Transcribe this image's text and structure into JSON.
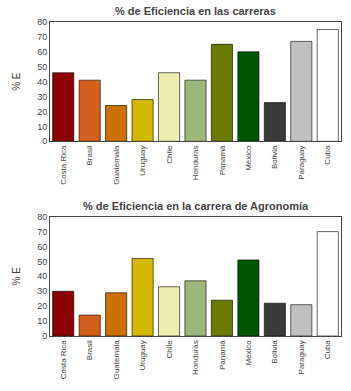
{
  "chart_data": [
    {
      "type": "bar",
      "title": "% de Eficiencia en las carreras",
      "ylabel": "% E",
      "categories": [
        "Costa Rica",
        "Brasil",
        "Guatemala",
        "Uruguay",
        "Chile",
        "Honduras",
        "Panamá",
        "México",
        "Bolivia",
        "Paraguay",
        "Cuba"
      ],
      "values": [
        46,
        41,
        24,
        28,
        46,
        41,
        65,
        60,
        26,
        67,
        75
      ],
      "colors": [
        "#8B0000",
        "#D2601A",
        "#CC7000",
        "#D4B800",
        "#F0EDB0",
        "#9DB87A",
        "#6B7A00",
        "#005500",
        "#3A3A3A",
        "#C0C0C0",
        "#FFFFFF"
      ],
      "ylim": [
        0,
        80
      ],
      "yticks": [
        0,
        10,
        20,
        30,
        40,
        50,
        60,
        70,
        80
      ],
      "grid": false
    },
    {
      "type": "bar",
      "title": "% de Eficiencia en la carrera de Agronomía",
      "ylabel": "% E",
      "categories": [
        "Costa Rica",
        "Brasil",
        "Guatemala",
        "Uruguay",
        "Chile",
        "Honduras",
        "Panamá",
        "México",
        "Bolivia",
        "Paraguay",
        "Cuba"
      ],
      "values": [
        30,
        14,
        29,
        52,
        33,
        37,
        24,
        51,
        22,
        21,
        70
      ],
      "colors": [
        "#8B0000",
        "#D2601A",
        "#CC7000",
        "#D4B800",
        "#F0EDB0",
        "#9DB87A",
        "#6B7A00",
        "#005500",
        "#3A3A3A",
        "#C0C0C0",
        "#FFFFFF"
      ],
      "ylim": [
        0,
        80
      ],
      "yticks": [
        0,
        10,
        20,
        30,
        40,
        50,
        60,
        70,
        80
      ],
      "grid": false
    }
  ]
}
